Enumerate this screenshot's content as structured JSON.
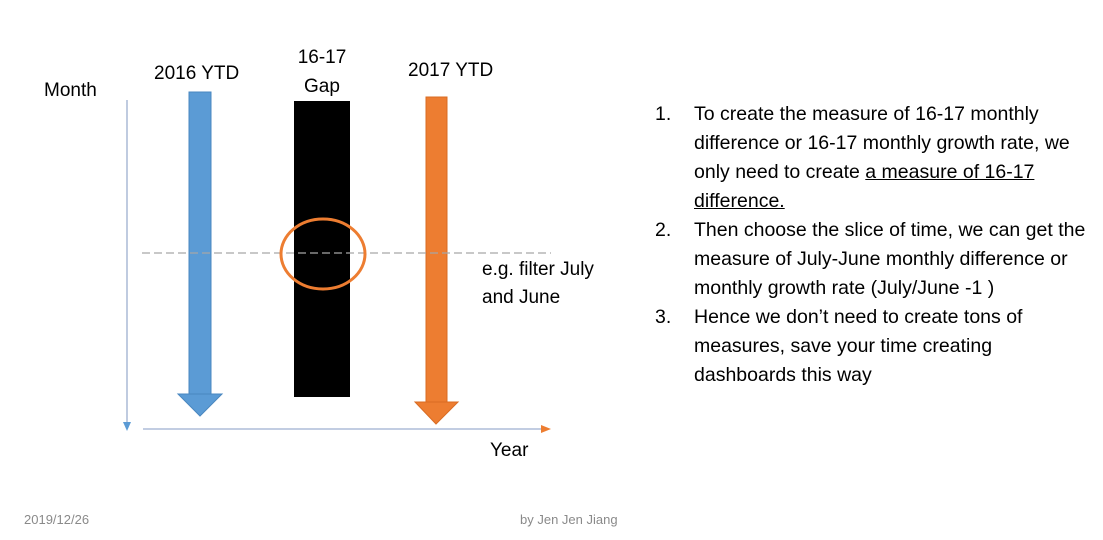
{
  "diagram": {
    "axis_y_label": "Month",
    "axis_x_label": "Year",
    "arrow_2016_label": "2016 YTD",
    "gap_label_line1": "16-17",
    "gap_label_line2": "Gap",
    "arrow_2017_label": "2017 YTD",
    "filter_note_line1": "e.g. filter July",
    "filter_note_line2": "and June",
    "colors": {
      "arrow_2016": "#5b9bd5",
      "arrow_2017": "#ed7d31",
      "gap_bar": "#000000",
      "circle": "#ed7d31",
      "axis": "#9dafd0",
      "x_axis_arrow": "#ed7d31",
      "dashed_line": "#a6a6a6"
    }
  },
  "steps": [
    {
      "number": "1.",
      "text_before": "To create the measure of 16-17 monthly difference or 16-17 monthly growth rate, we only need to create ",
      "text_underlined": "a measure of 16-17 difference."
    },
    {
      "number": "2.",
      "text": "Then choose the slice of time, we can get the measure of July-June monthly difference or monthly growth rate (July/June -1 )"
    },
    {
      "number": "3.",
      "text": "Hence we don’t need to create tons of measures, save your time creating dashboards this way"
    }
  ],
  "footer": {
    "date": "2019/12/26",
    "author": "by Jen Jen Jiang"
  }
}
